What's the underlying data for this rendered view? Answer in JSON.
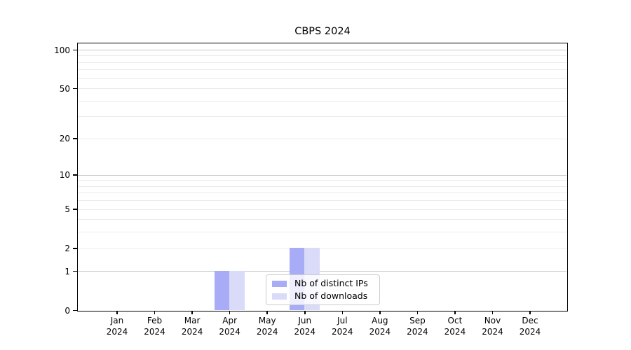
{
  "title": "CBPS 2024",
  "chart_data": {
    "type": "bar",
    "title": "CBPS 2024",
    "categories": [
      "Jan 2024",
      "Feb 2024",
      "Mar 2024",
      "Apr 2024",
      "May 2024",
      "Jun 2024",
      "Jul 2024",
      "Aug 2024",
      "Sep 2024",
      "Oct 2024",
      "Nov 2024",
      "Dec 2024"
    ],
    "series": [
      {
        "name": "Nb of distinct IPs",
        "color": "#a8abf5",
        "values": [
          0,
          0,
          0,
          1,
          0,
          2,
          0,
          0,
          0,
          0,
          0,
          0
        ]
      },
      {
        "name": "Nb of downloads",
        "color": "#d9dbf9",
        "values": [
          0,
          0,
          0,
          1,
          0,
          2,
          0,
          0,
          0,
          0,
          0,
          0
        ]
      }
    ],
    "xlabel": "",
    "ylabel": "",
    "yscale": "log1p",
    "ylim": [
      0,
      112
    ],
    "y_ticks": [
      0,
      1,
      2,
      5,
      10,
      20,
      50,
      100
    ],
    "grid": true,
    "grid_major": [
      1,
      10,
      100
    ],
    "grid_minor": [
      2,
      3,
      4,
      5,
      6,
      7,
      8,
      9,
      20,
      30,
      40,
      50,
      60,
      70,
      80,
      90
    ],
    "colors": {
      "major_grid": "#c8c8c8",
      "minor_grid": "#ebebeb",
      "spine": "#000000",
      "legend_border": "#cccccc"
    },
    "legend_position": "lower center"
  }
}
